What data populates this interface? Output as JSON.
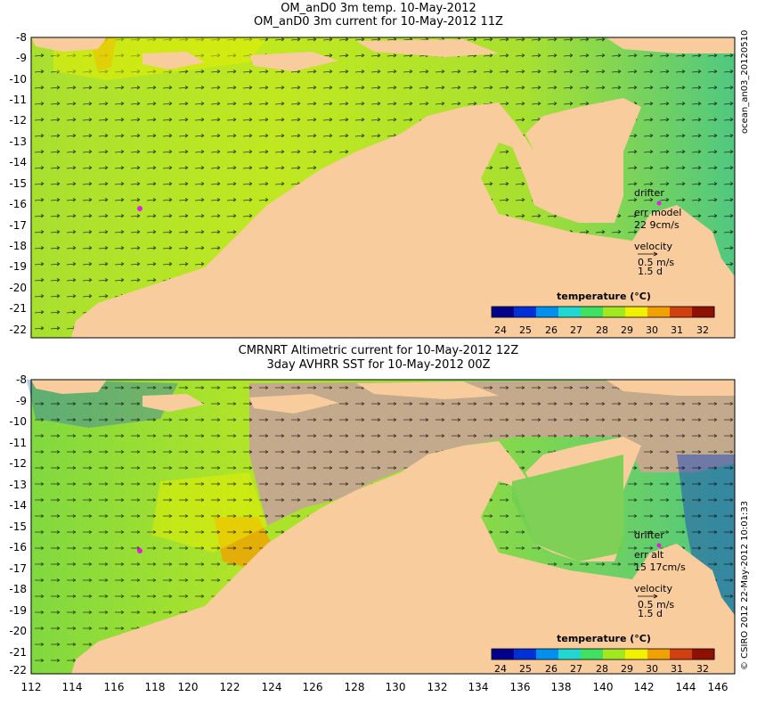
{
  "colors": {
    "land": "#f8cc9c",
    "no_data": "#c4aa8c",
    "arrow": "#000000",
    "drifter": "#e020e0"
  },
  "top_panel": {
    "title_line1": "OM_anD0 3m temp. 10-May-2012",
    "title_line2": "OM_anD0 3m current for 10-May-2012 11Z",
    "side_label": "ocean_an03_20120510",
    "drifter_label": "drifter",
    "err_label": "err model",
    "err_value": "22 9cm/s",
    "velocity_label": "velocity",
    "velocity_value": "0.5 m/s",
    "velocity_time": "1.5 d",
    "colorbar_title": "temperature (°C)"
  },
  "bottom_panel": {
    "title_line1": "CMRNRT Altimetric current for 10-May-2012 12Z",
    "title_line2": "3day AVHRR SST for 10-May-2012 00Z",
    "side_label": "© CSIRO 2012   22-May-2012 10:01:33",
    "drifter_label": "drifter",
    "err_label": "err alt",
    "err_value": "15 17cm/s",
    "velocity_label": "velocity",
    "velocity_value": "0.5 m/s",
    "velocity_time": "1.5 d",
    "colorbar_title": "temperature (°C)"
  },
  "axes": {
    "lat_ticks": [
      "-8",
      "-9",
      "-10",
      "-11",
      "-12",
      "-13",
      "-14",
      "-15",
      "-16",
      "-17",
      "-18",
      "-19",
      "-20",
      "-21",
      "-22"
    ],
    "lon_ticks": [
      "112",
      "114",
      "116",
      "118",
      "120",
      "122",
      "124",
      "126",
      "128",
      "130",
      "132",
      "134",
      "136",
      "138",
      "140",
      "142",
      "144",
      "146"
    ]
  },
  "colorbar": {
    "ticks": [
      "24",
      "25",
      "26",
      "27",
      "28",
      "29",
      "30",
      "31",
      "32"
    ],
    "stops": [
      "#00008c",
      "#0030d8",
      "#0090f0",
      "#20d8d0",
      "#40e060",
      "#a0e820",
      "#f0f000",
      "#f0a000",
      "#d04010",
      "#901000"
    ]
  }
}
